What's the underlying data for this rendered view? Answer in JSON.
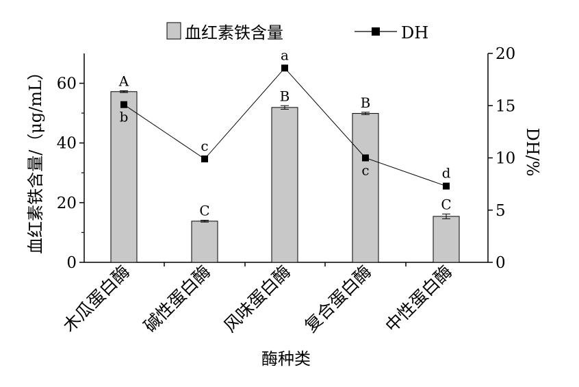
{
  "chart_data": {
    "type": "bar+line",
    "categories": [
      "木瓜蛋白酶",
      "碱性蛋白酶",
      "风味蛋白酶",
      "复合蛋白酶",
      "中性蛋白酶"
    ],
    "xlabel": "酶种类",
    "ylabel_left": "血红素铁含量/（μg/mL）",
    "ylabel_right": "DH/%",
    "ylim_left": [
      0,
      70
    ],
    "ylim_right": [
      0,
      20
    ],
    "left_ticks": [
      0,
      20,
      40,
      60
    ],
    "right_ticks": [
      0,
      5,
      10,
      15,
      20
    ],
    "legend_position": "top",
    "series": [
      {
        "name": "血红素铁含量",
        "kind": "bar",
        "axis": "left",
        "values": [
          57.2,
          13.8,
          51.9,
          49.9,
          15.4
        ],
        "errors": [
          0.3,
          0.3,
          0.6,
          0.4,
          0.8
        ],
        "labels": [
          "A",
          "C",
          "B",
          "B",
          "C"
        ],
        "color": "#c8c8c8"
      },
      {
        "name": "DH",
        "kind": "line",
        "axis": "right",
        "values": [
          15.1,
          9.9,
          18.6,
          10.0,
          7.3
        ],
        "errors": [
          0.2,
          0.2,
          0.2,
          0.2,
          0.2
        ],
        "labels": [
          "b",
          "c",
          "a",
          "c",
          "d"
        ],
        "color": "#000000"
      }
    ]
  }
}
